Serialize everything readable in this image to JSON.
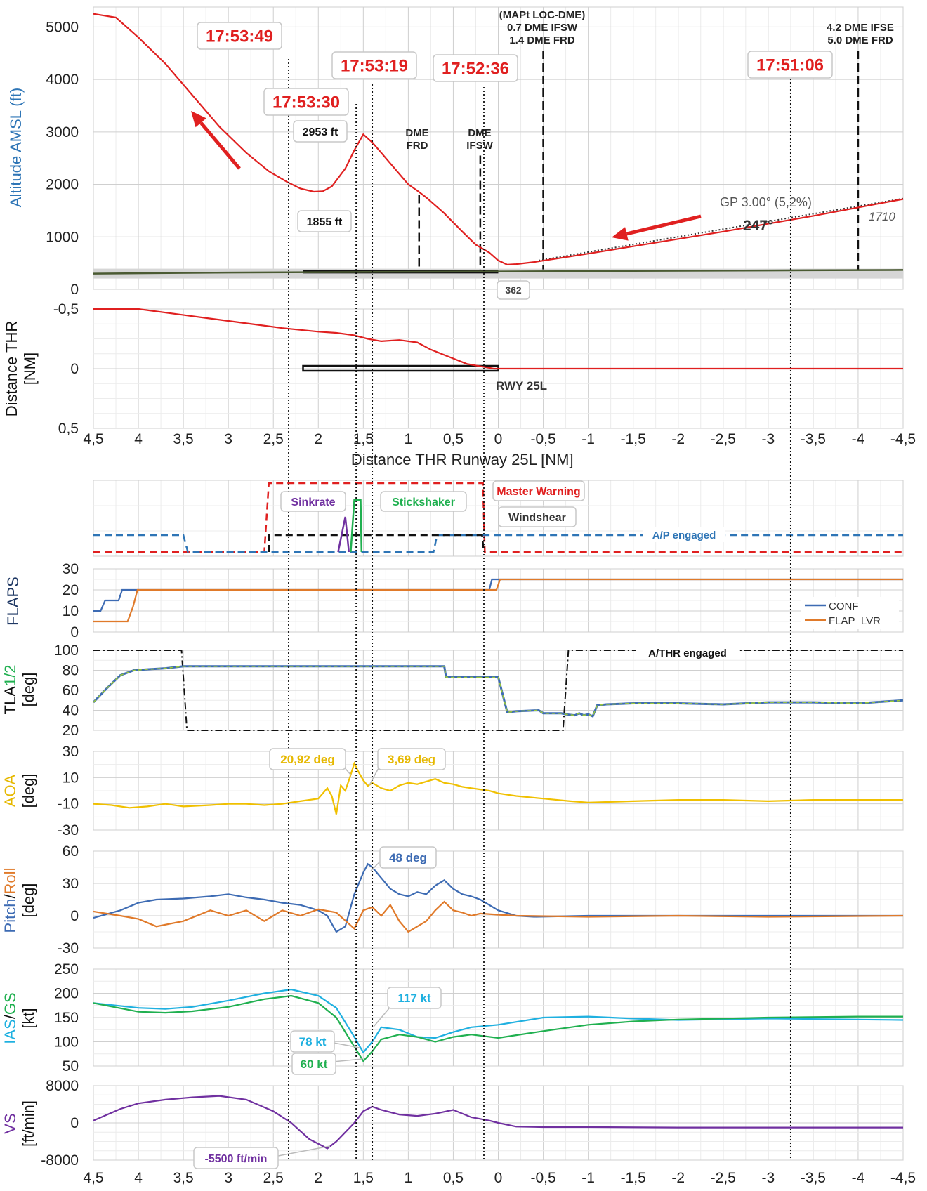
{
  "chart_data": [
    {
      "type": "line",
      "panel": "altitude",
      "ylabel": "Altitude AMSL (ft)",
      "ylim": [
        0,
        5200
      ],
      "yticks": [
        "0",
        "1000",
        "2000",
        "3000",
        "4000",
        "5000"
      ],
      "xlim": [
        4.5,
        -4.5
      ],
      "grid": true,
      "series": [
        {
          "color": "#e02020",
          "x": [
            4.5,
            4.25,
            4.0,
            3.7,
            3.4,
            3.1,
            2.8,
            2.55,
            2.35,
            2.2,
            2.05,
            1.95,
            1.85,
            1.7,
            1.6,
            1.5,
            1.4,
            1.3,
            1.2,
            1.1,
            1.0,
            0.9,
            0.8,
            0.6,
            0.4,
            0.25,
            0.1,
            0.0,
            -0.1,
            -0.2,
            -0.4,
            -0.7,
            -1.0,
            -1.5,
            -2.0,
            -2.5,
            -3.0,
            -3.5,
            -4.0,
            -4.5
          ],
          "y": [
            5250,
            5180,
            4800,
            4300,
            3700,
            3100,
            2600,
            2250,
            2050,
            1920,
            1860,
            1870,
            1960,
            2300,
            2650,
            2953,
            2800,
            2600,
            2400,
            2200,
            2000,
            1880,
            1750,
            1450,
            1100,
            850,
            700,
            550,
            470,
            480,
            520,
            600,
            680,
            820,
            960,
            1100,
            1250,
            1400,
            1560,
            1720
          ]
        },
        {
          "color": "#4a5a32",
          "x": [
            4.5,
            3.0,
            1.5,
            0.0,
            -1.5,
            -3.0,
            -4.5
          ],
          "y": [
            300,
            320,
            330,
            340,
            350,
            360,
            370
          ]
        }
      ],
      "annotations": {
        "times": [
          "17:53:49",
          "17:53:30",
          "17:53:19",
          "17:52:36",
          "17:51:06"
        ],
        "peak": "2953 ft",
        "trough": "1855 ft",
        "dme_frd": [
          "DME",
          "FRD"
        ],
        "dme_ifsw": [
          "DME",
          "IFSW"
        ],
        "mapt": [
          "(MAPt LOC-DME)",
          "0.7 DME IFSW",
          "1.4 DME FRD"
        ],
        "ifse": [
          "4.2 DME IFSE",
          "5.0 DME FRD"
        ],
        "gp": "GP 3.00° (5,2%)",
        "heading": "247°",
        "elev": "1710",
        "runway_elev": "362"
      }
    },
    {
      "type": "line",
      "panel": "lateral",
      "ylabel": "Distance THR [NM]",
      "ylim": [
        0.5,
        -0.5
      ],
      "yticks": [
        "-0,5",
        "0",
        "0,5"
      ],
      "runway_label": "RWY 25L",
      "series": [
        {
          "color": "#e02020",
          "x": [
            4.5,
            4.0,
            3.6,
            3.2,
            2.8,
            2.4,
            2.0,
            1.8,
            1.6,
            1.45,
            1.3,
            1.1,
            0.9,
            0.75,
            0.55,
            0.35,
            0.2,
            0.05,
            -0.2,
            -1.0,
            -2.0,
            -3.0,
            -4.5
          ],
          "y": [
            -0.5,
            -0.5,
            -0.46,
            -0.42,
            -0.38,
            -0.34,
            -0.31,
            -0.3,
            -0.28,
            -0.25,
            -0.23,
            -0.24,
            -0.22,
            -0.16,
            -0.1,
            -0.04,
            -0.02,
            0.0,
            0.0,
            0.0,
            0.0,
            0.0,
            0.0
          ]
        }
      ]
    },
    {
      "type": "line",
      "panel": "warnings",
      "labels": {
        "sinkrate": "Sinkrate",
        "stickshaker": "Stickshaker",
        "master": "Master Warning",
        "windshear": "Windshear",
        "ap": "A/P engaged"
      }
    },
    {
      "type": "line",
      "panel": "flaps",
      "ylabel": "FLAPS",
      "ylim": [
        0,
        30
      ],
      "yticks": [
        "0",
        "10",
        "20",
        "30"
      ],
      "legend": [
        "CONF",
        "FLAP_LVR"
      ],
      "legend_position": "right",
      "series": [
        {
          "name": "CONF",
          "color": "#3d6bb3",
          "x": [
            4.5,
            4.42,
            4.37,
            4.22,
            4.18,
            4.07,
            4.03,
            0.1,
            0.07,
            0.0,
            -0.03,
            -4.5
          ],
          "y": [
            10,
            10,
            15,
            15,
            20,
            20,
            20,
            20,
            25,
            25,
            25,
            25
          ]
        },
        {
          "name": "FLAP_LVR",
          "color": "#e07a2a",
          "x": [
            4.5,
            4.12,
            4.06,
            4.01,
            0.04,
            0.02,
            -0.02,
            -4.5
          ],
          "y": [
            5,
            5,
            12,
            20,
            20,
            20,
            25,
            25
          ]
        }
      ]
    },
    {
      "type": "line",
      "panel": "tla",
      "ylabel": "TLA1/2 [deg]",
      "ylim": [
        20,
        100
      ],
      "yticks": [
        "20",
        "40",
        "60",
        "80",
        "100"
      ],
      "athr_label": "A/THR engaged",
      "series": [
        {
          "color": "#3d6bb3",
          "x": [
            4.5,
            4.35,
            4.2,
            4.05,
            3.9,
            3.7,
            3.5,
            2.0,
            1.0,
            0.6,
            0.58,
            0.2,
            0.22,
            0.1,
            0.0,
            -0.1,
            -0.2,
            -0.45,
            -0.5,
            -0.7,
            -0.75,
            -0.85,
            -0.9,
            -0.95,
            -1.0,
            -1.05,
            -1.1,
            -1.2,
            -1.5,
            -2.0,
            -2.5,
            -3.0,
            -3.5,
            -4.0,
            -4.5
          ],
          "y": [
            48,
            62,
            75,
            80,
            81,
            82,
            84,
            84,
            84,
            84,
            73,
            73,
            73,
            73,
            73,
            38,
            39,
            40,
            37,
            37,
            36,
            35,
            37,
            35,
            36,
            34,
            45,
            46,
            47,
            47,
            46,
            48,
            48,
            47,
            50
          ]
        }
      ]
    },
    {
      "type": "line",
      "panel": "aoa",
      "ylabel": "AOA [deg]",
      "ylim": [
        -30,
        30
      ],
      "yticks": [
        "-30",
        "-10",
        "10",
        "30"
      ],
      "labels": [
        "20,92 deg",
        "3,69 deg"
      ],
      "series": [
        {
          "color": "#f0c000",
          "x": [
            4.5,
            4.3,
            4.1,
            3.9,
            3.7,
            3.5,
            3.2,
            3.0,
            2.8,
            2.6,
            2.4,
            2.2,
            2.0,
            1.9,
            1.85,
            1.8,
            1.75,
            1.7,
            1.65,
            1.6,
            1.55,
            1.5,
            1.45,
            1.4,
            1.3,
            1.2,
            1.1,
            1.0,
            0.9,
            0.8,
            0.7,
            0.6,
            0.5,
            0.4,
            0.3,
            0.2,
            0.1,
            0.0,
            -0.2,
            -0.5,
            -0.8,
            -1.0,
            -1.5,
            -2.0,
            -2.5,
            -3.0,
            -3.5,
            -4.0,
            -4.5
          ],
          "y": [
            -10,
            -11,
            -13,
            -12,
            -10,
            -12,
            -11,
            -10,
            -10,
            -11,
            -10,
            -8,
            -6,
            2,
            -4,
            -18,
            4,
            0,
            10,
            20.9,
            14,
            8,
            3.7,
            6,
            2,
            0,
            4,
            6,
            5,
            7,
            9,
            6,
            5,
            3,
            2,
            1,
            0,
            -2,
            -4,
            -6,
            -8,
            -9,
            -8,
            -7,
            -7,
            -8,
            -7,
            -7,
            -7
          ]
        }
      ]
    },
    {
      "type": "line",
      "panel": "pitch_roll",
      "ylabel": "Pitch/Roll [deg]",
      "ylim": [
        -30,
        60
      ],
      "yticks": [
        "-30",
        "0",
        "30",
        "60"
      ],
      "labels": [
        "48 deg"
      ],
      "series": [
        {
          "name": "Pitch",
          "color": "#3d6bb3",
          "x": [
            4.5,
            4.2,
            4.0,
            3.8,
            3.5,
            3.2,
            3.0,
            2.8,
            2.6,
            2.4,
            2.2,
            2.0,
            1.9,
            1.8,
            1.7,
            1.6,
            1.5,
            1.45,
            1.4,
            1.3,
            1.2,
            1.1,
            1.0,
            0.9,
            0.8,
            0.7,
            0.6,
            0.5,
            0.4,
            0.3,
            0.2,
            0.1,
            0.0,
            -0.2,
            -0.4,
            -1.0,
            -2.0,
            -3.0,
            -4.5
          ],
          "y": [
            -2,
            5,
            12,
            15,
            16,
            18,
            20,
            17,
            15,
            12,
            10,
            5,
            0,
            -15,
            -10,
            20,
            40,
            48,
            45,
            35,
            25,
            20,
            18,
            22,
            20,
            28,
            33,
            25,
            20,
            18,
            15,
            10,
            5,
            0,
            -1,
            0,
            0,
            0,
            0
          ]
        },
        {
          "name": "Roll",
          "color": "#e07a2a",
          "x": [
            4.5,
            4.2,
            4.0,
            3.8,
            3.5,
            3.2,
            3.0,
            2.8,
            2.6,
            2.4,
            2.2,
            2.0,
            1.8,
            1.6,
            1.5,
            1.4,
            1.3,
            1.2,
            1.1,
            1.0,
            0.9,
            0.8,
            0.7,
            0.6,
            0.5,
            0.4,
            0.3,
            0.2,
            0.0,
            -0.2,
            -1.0,
            -2.0,
            -3.0,
            -4.5
          ],
          "y": [
            4,
            0,
            -3,
            -10,
            -5,
            5,
            0,
            5,
            -5,
            5,
            0,
            6,
            3,
            -12,
            5,
            8,
            0,
            10,
            -5,
            -15,
            -10,
            -5,
            5,
            13,
            5,
            3,
            0,
            2,
            1,
            0,
            -1,
            0,
            -1,
            0
          ]
        }
      ]
    },
    {
      "type": "line",
      "panel": "speed",
      "ylabel": "IAS/GS [kt]",
      "ylim": [
        50,
        250
      ],
      "yticks": [
        "50",
        "100",
        "150",
        "200",
        "250"
      ],
      "labels": [
        "117 kt",
        "78 kt",
        "60 kt"
      ],
      "series": [
        {
          "name": "IAS",
          "color": "#1fb0e0",
          "x": [
            4.5,
            4.0,
            3.7,
            3.4,
            3.0,
            2.6,
            2.3,
            2.0,
            1.8,
            1.6,
            1.5,
            1.4,
            1.3,
            1.1,
            0.9,
            0.7,
            0.5,
            0.3,
            0.0,
            -0.5,
            -1.0,
            -1.5,
            -2.0,
            -3.0,
            -4.0,
            -4.5
          ],
          "y": [
            180,
            170,
            168,
            172,
            185,
            200,
            208,
            195,
            170,
            110,
            78,
            100,
            130,
            125,
            110,
            108,
            120,
            130,
            135,
            150,
            152,
            148,
            145,
            148,
            146,
            145
          ]
        },
        {
          "name": "GS",
          "color": "#20b050",
          "x": [
            4.5,
            4.0,
            3.7,
            3.4,
            3.0,
            2.6,
            2.3,
            2.0,
            1.8,
            1.6,
            1.5,
            1.4,
            1.3,
            1.1,
            0.9,
            0.7,
            0.5,
            0.3,
            0.0,
            -0.5,
            -1.0,
            -1.5,
            -2.0,
            -3.0,
            -4.0,
            -4.5
          ],
          "y": [
            180,
            162,
            160,
            163,
            172,
            188,
            195,
            180,
            150,
            90,
            60,
            80,
            105,
            115,
            110,
            100,
            110,
            115,
            108,
            122,
            135,
            142,
            146,
            150,
            152,
            152
          ]
        }
      ]
    },
    {
      "type": "line",
      "panel": "vs",
      "ylabel": "VS [ft/min]",
      "ylim": [
        -8000,
        8000
      ],
      "yticks": [
        "-8000",
        "0",
        "8000"
      ],
      "xlabel": "Distance THR Runway 25L [NM]",
      "xticks": [
        "4,5",
        "4",
        "3,5",
        "3",
        "2,5",
        "2",
        "1,5",
        "1",
        "0,5",
        "0",
        "-0,5",
        "-1",
        "-1,5",
        "-2",
        "-2,5",
        "-3",
        "-3,5",
        "-4",
        "-4,5"
      ],
      "labels": [
        "-5500 ft/min"
      ],
      "series": [
        {
          "color": "#7030a0",
          "x": [
            4.5,
            4.2,
            4.0,
            3.7,
            3.4,
            3.1,
            2.8,
            2.5,
            2.3,
            2.1,
            1.9,
            1.8,
            1.7,
            1.6,
            1.5,
            1.4,
            1.3,
            1.1,
            0.9,
            0.7,
            0.5,
            0.3,
            0.1,
            0.0,
            -0.2,
            -0.5,
            -1.0,
            -2.0,
            -3.0,
            -4.0,
            -4.5
          ],
          "y": [
            500,
            3000,
            4200,
            5000,
            5500,
            5800,
            5000,
            2500,
            0,
            -3500,
            -5500,
            -4000,
            -2000,
            0,
            2500,
            3500,
            2800,
            1800,
            1500,
            2000,
            2800,
            1200,
            500,
            0,
            -800,
            -900,
            -900,
            -1000,
            -1000,
            -1000,
            -1000
          ]
        }
      ]
    }
  ]
}
